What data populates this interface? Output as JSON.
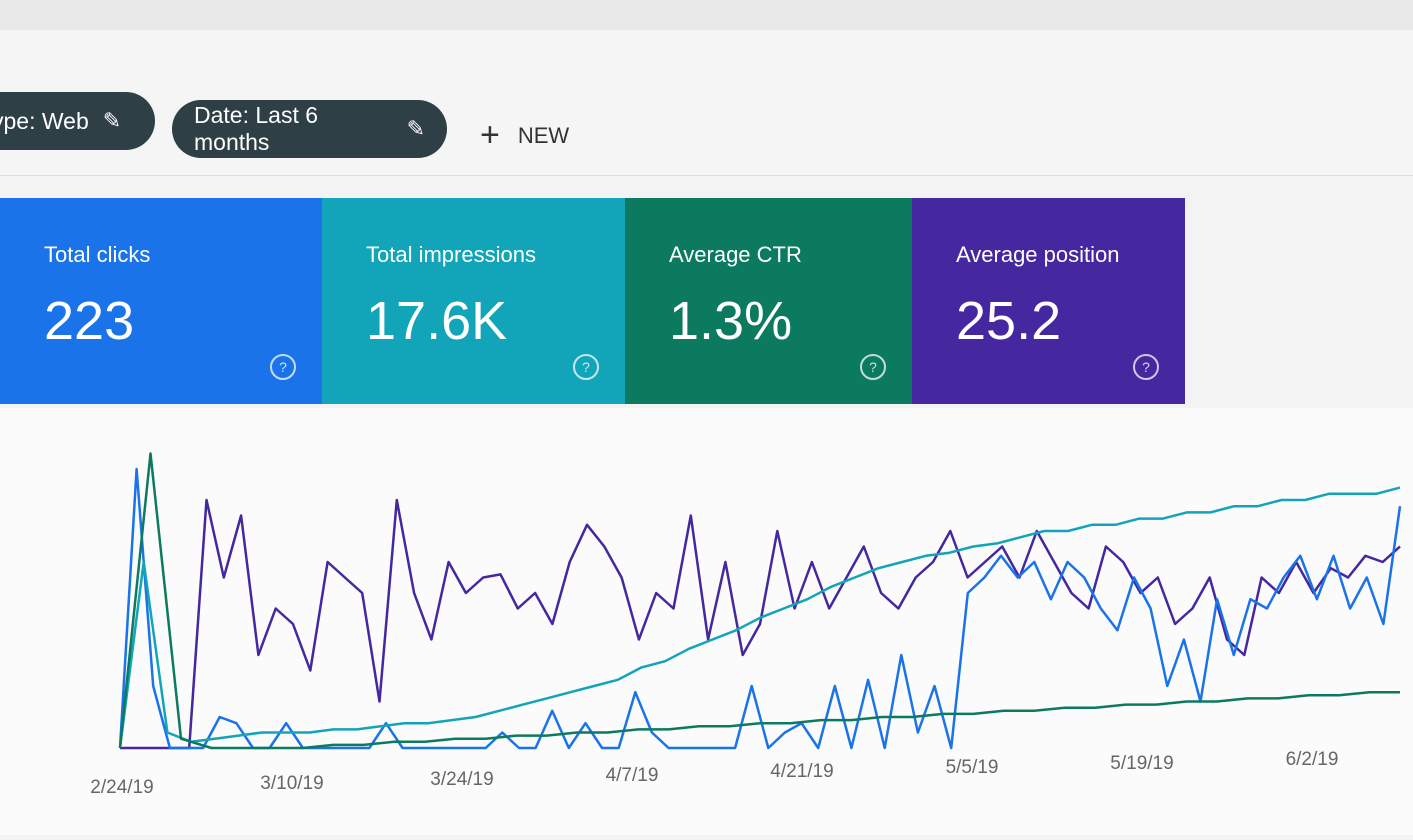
{
  "filters": {
    "type_chip": "ype: Web",
    "date_chip": "Date: Last 6 months",
    "new_label": "NEW"
  },
  "cards": [
    {
      "label": "Total clicks",
      "value": "223"
    },
    {
      "label": "Total impressions",
      "value": "17.6K"
    },
    {
      "label": "Average CTR",
      "value": "1.3%"
    },
    {
      "label": "Average position",
      "value": "25.2"
    }
  ],
  "colors": {
    "clicks": "#1a73e8",
    "impressions": "#12a4b8",
    "ctr": "#0c7a5e",
    "position": "#4527a0"
  },
  "chart_data": {
    "type": "line",
    "x_tick_labels": [
      "2/24/19",
      "3/10/19",
      "3/24/19",
      "4/7/19",
      "4/21/19",
      "5/5/19",
      "5/19/19",
      "6/2/19"
    ],
    "grid": false,
    "legend": "none",
    "series": [
      {
        "color": "#4527a0",
        "values": [
          0,
          0,
          0,
          0,
          0,
          80,
          55,
          75,
          30,
          45,
          40,
          25,
          60,
          55,
          50,
          15,
          80,
          50,
          35,
          60,
          50,
          55,
          56,
          45,
          50,
          40,
          60,
          72,
          65,
          55,
          35,
          50,
          45,
          75,
          35,
          60,
          30,
          40,
          70,
          45,
          60,
          45,
          55,
          65,
          50,
          45,
          55,
          60,
          70,
          55,
          60,
          65,
          55,
          70,
          60,
          50,
          45,
          65,
          60,
          50,
          55,
          40,
          45,
          55,
          35,
          30,
          55,
          50,
          60,
          50,
          58,
          55,
          62,
          60,
          65
        ]
      },
      {
        "color": "#1a73e8",
        "values": [
          0,
          90,
          20,
          0,
          0,
          0,
          10,
          8,
          0,
          0,
          8,
          0,
          0,
          0,
          0,
          0,
          8,
          0,
          0,
          0,
          0,
          0,
          0,
          5,
          0,
          0,
          12,
          0,
          8,
          0,
          0,
          18,
          5,
          0,
          0,
          0,
          0,
          0,
          20,
          0,
          5,
          8,
          0,
          20,
          0,
          22,
          0,
          30,
          5,
          20,
          0,
          50,
          55,
          62,
          55,
          60,
          48,
          60,
          55,
          45,
          38,
          55,
          45,
          20,
          35,
          15,
          48,
          30,
          48,
          45,
          55,
          62,
          48,
          62,
          45,
          55,
          40,
          78
        ]
      },
      {
        "color": "#12a4b8",
        "values": [
          0,
          60,
          5,
          2,
          3,
          4,
          5,
          5,
          5,
          6,
          6,
          7,
          8,
          8,
          9,
          10,
          12,
          14,
          16,
          18,
          20,
          22,
          26,
          28,
          32,
          35,
          38,
          42,
          45,
          48,
          52,
          55,
          58,
          60,
          62,
          63,
          65,
          66,
          68,
          70,
          70,
          72,
          72,
          74,
          74,
          76,
          76,
          78,
          78,
          80,
          80,
          82,
          82,
          82,
          84
        ]
      },
      {
        "color": "#0c7a5e",
        "values": [
          0,
          95,
          3,
          0,
          0,
          0,
          0,
          1,
          1,
          2,
          2,
          3,
          3,
          4,
          4,
          5,
          5,
          6,
          6,
          7,
          7,
          8,
          8,
          9,
          9,
          10,
          10,
          11,
          11,
          12,
          12,
          13,
          13,
          14,
          14,
          15,
          15,
          16,
          16,
          17,
          17,
          18,
          18
        ]
      }
    ]
  }
}
